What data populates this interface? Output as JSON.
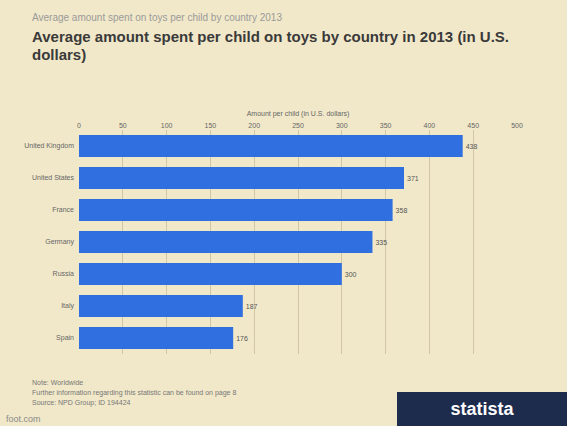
{
  "chart_data": {
    "type": "bar",
    "orientation": "horizontal",
    "supertitle": "Average amount spent on toys per child by country 2013",
    "title": "Average amount spent per child on toys by country in 2013 (in U.S. dollars)",
    "xlabel": "Amount per child (in U.S. dollars)",
    "categories": [
      "United Kingdom",
      "United States",
      "France",
      "Germany",
      "Russia",
      "Italy",
      "Spain"
    ],
    "values": [
      438,
      371,
      358,
      335,
      300,
      187,
      176
    ],
    "color": "#2f6fe0",
    "xlim": [
      0,
      500
    ],
    "xticks": [
      0,
      50,
      100,
      150,
      200,
      250,
      300,
      350,
      400,
      450,
      500
    ],
    "grid": true,
    "data_labels": true,
    "notes": [
      "Note: Worldwide",
      "Further information regarding this statistic can be found on page 8",
      "Source: NPD Group; ID 194424"
    ],
    "brand": "statista",
    "watermark": "foot.com"
  }
}
